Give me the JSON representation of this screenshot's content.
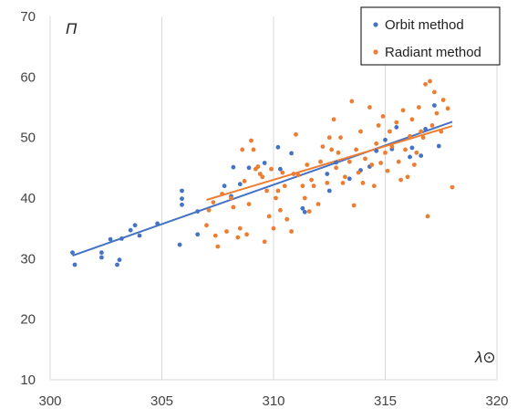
{
  "chart_data": {
    "type": "scatter",
    "title": "",
    "xlabel": "λ⊙",
    "ylabel": "П",
    "xlim": [
      300,
      320
    ],
    "ylim": [
      10,
      70
    ],
    "x_ticks": [
      300,
      305,
      310,
      315,
      320
    ],
    "y_ticks": [
      10,
      20,
      30,
      40,
      50,
      60,
      70
    ],
    "x_tick_labels": [
      "300",
      "305",
      "310",
      "315",
      "320"
    ],
    "y_tick_labels": [
      "10",
      "20",
      "30",
      "40",
      "50",
      "60",
      "70"
    ],
    "grid": {
      "vertical": true,
      "horizontal": false
    },
    "legend_position": "top-right",
    "series": [
      {
        "name": "Orbit method",
        "color": "#4472C4",
        "trendline": {
          "x": [
            301,
            318
          ],
          "y": [
            30.5,
            52.6
          ]
        },
        "points": [
          [
            301.0,
            31.0
          ],
          [
            301.1,
            29.0
          ],
          [
            302.3,
            31.0
          ],
          [
            302.3,
            30.2
          ],
          [
            302.7,
            33.2
          ],
          [
            303.0,
            29.0
          ],
          [
            303.1,
            29.8
          ],
          [
            303.2,
            33.3
          ],
          [
            303.6,
            34.7
          ],
          [
            303.8,
            35.5
          ],
          [
            304.0,
            33.8
          ],
          [
            304.8,
            35.8
          ],
          [
            305.8,
            32.3
          ],
          [
            305.9,
            41.2
          ],
          [
            305.9,
            39.9
          ],
          [
            305.9,
            38.9
          ],
          [
            306.6,
            37.8
          ],
          [
            306.6,
            34.0
          ],
          [
            307.8,
            42.0
          ],
          [
            308.1,
            40.3
          ],
          [
            308.2,
            45.1
          ],
          [
            308.5,
            42.3
          ],
          [
            308.9,
            45.0
          ],
          [
            309.6,
            45.8
          ],
          [
            310.2,
            48.4
          ],
          [
            310.3,
            44.8
          ],
          [
            310.8,
            47.4
          ],
          [
            311.3,
            38.3
          ],
          [
            311.4,
            37.7
          ],
          [
            312.4,
            44.0
          ],
          [
            312.5,
            41.2
          ],
          [
            312.8,
            45.9
          ],
          [
            313.4,
            43.2
          ],
          [
            313.9,
            44.6
          ],
          [
            314.3,
            45.2
          ],
          [
            314.6,
            47.8
          ],
          [
            315.0,
            49.6
          ],
          [
            315.3,
            48.1
          ],
          [
            315.5,
            51.7
          ],
          [
            316.1,
            46.8
          ],
          [
            316.2,
            48.3
          ],
          [
            316.6,
            47.0
          ],
          [
            316.8,
            51.4
          ],
          [
            317.2,
            55.3
          ],
          [
            317.4,
            48.6
          ]
        ]
      },
      {
        "name": "Radiant method",
        "color": "#ED7D31",
        "trendline": {
          "x": [
            307,
            318
          ],
          "y": [
            39.7,
            51.9
          ]
        },
        "points": [
          [
            307.0,
            35.5
          ],
          [
            307.1,
            38.0
          ],
          [
            307.3,
            39.3
          ],
          [
            307.4,
            33.8
          ],
          [
            307.5,
            32.0
          ],
          [
            307.7,
            40.7
          ],
          [
            307.9,
            34.5
          ],
          [
            308.1,
            40.0
          ],
          [
            308.2,
            38.5
          ],
          [
            308.4,
            33.5
          ],
          [
            308.5,
            35.0
          ],
          [
            308.6,
            48.0
          ],
          [
            308.7,
            42.8
          ],
          [
            308.8,
            34.0
          ],
          [
            308.9,
            39.0
          ],
          [
            309.0,
            49.5
          ],
          [
            309.1,
            48.0
          ],
          [
            309.2,
            44.8
          ],
          [
            309.3,
            45.2
          ],
          [
            309.4,
            44.0
          ],
          [
            309.5,
            43.5
          ],
          [
            309.6,
            32.8
          ],
          [
            309.7,
            41.2
          ],
          [
            309.8,
            37.0
          ],
          [
            309.9,
            44.8
          ],
          [
            310.0,
            35.0
          ],
          [
            310.1,
            40.0
          ],
          [
            310.2,
            41.2
          ],
          [
            310.3,
            38.0
          ],
          [
            310.4,
            44.2
          ],
          [
            310.5,
            42.0
          ],
          [
            310.6,
            36.5
          ],
          [
            310.8,
            34.5
          ],
          [
            310.9,
            44.0
          ],
          [
            311.0,
            50.5
          ],
          [
            311.1,
            43.8
          ],
          [
            311.3,
            42.0
          ],
          [
            311.4,
            40.0
          ],
          [
            311.5,
            45.5
          ],
          [
            311.6,
            37.8
          ],
          [
            311.7,
            43.0
          ],
          [
            311.8,
            42.0
          ],
          [
            312.0,
            39.0
          ],
          [
            312.1,
            46.0
          ],
          [
            312.2,
            48.5
          ],
          [
            312.4,
            42.5
          ],
          [
            312.5,
            50.0
          ],
          [
            312.6,
            48.0
          ],
          [
            312.7,
            53.0
          ],
          [
            312.8,
            45.0
          ],
          [
            312.9,
            47.5
          ],
          [
            313.0,
            50.0
          ],
          [
            313.1,
            42.5
          ],
          [
            313.2,
            43.5
          ],
          [
            313.4,
            46.0
          ],
          [
            313.5,
            56.0
          ],
          [
            313.6,
            38.8
          ],
          [
            313.7,
            48.0
          ],
          [
            313.8,
            44.2
          ],
          [
            313.9,
            51.0
          ],
          [
            314.0,
            42.5
          ],
          [
            314.1,
            46.5
          ],
          [
            314.3,
            55.0
          ],
          [
            314.4,
            45.5
          ],
          [
            314.5,
            42.0
          ],
          [
            314.6,
            49.0
          ],
          [
            314.7,
            52.0
          ],
          [
            314.8,
            45.8
          ],
          [
            314.9,
            53.5
          ],
          [
            315.0,
            47.5
          ],
          [
            315.1,
            44.5
          ],
          [
            315.2,
            51.0
          ],
          [
            315.3,
            48.5
          ],
          [
            315.5,
            52.5
          ],
          [
            315.6,
            46.0
          ],
          [
            315.7,
            43.0
          ],
          [
            315.8,
            54.5
          ],
          [
            315.9,
            48.0
          ],
          [
            316.0,
            43.5
          ],
          [
            316.1,
            50.2
          ],
          [
            316.2,
            53.0
          ],
          [
            316.3,
            45.5
          ],
          [
            316.4,
            47.5
          ],
          [
            316.5,
            55.0
          ],
          [
            316.6,
            51.0
          ],
          [
            316.7,
            50.0
          ],
          [
            316.8,
            58.8
          ],
          [
            316.9,
            37.0
          ],
          [
            317.0,
            59.3
          ],
          [
            317.1,
            52.0
          ],
          [
            317.2,
            57.5
          ],
          [
            317.3,
            54.0
          ],
          [
            317.5,
            51.0
          ],
          [
            317.6,
            56.2
          ],
          [
            317.8,
            54.8
          ],
          [
            318.0,
            41.8
          ]
        ]
      }
    ]
  }
}
